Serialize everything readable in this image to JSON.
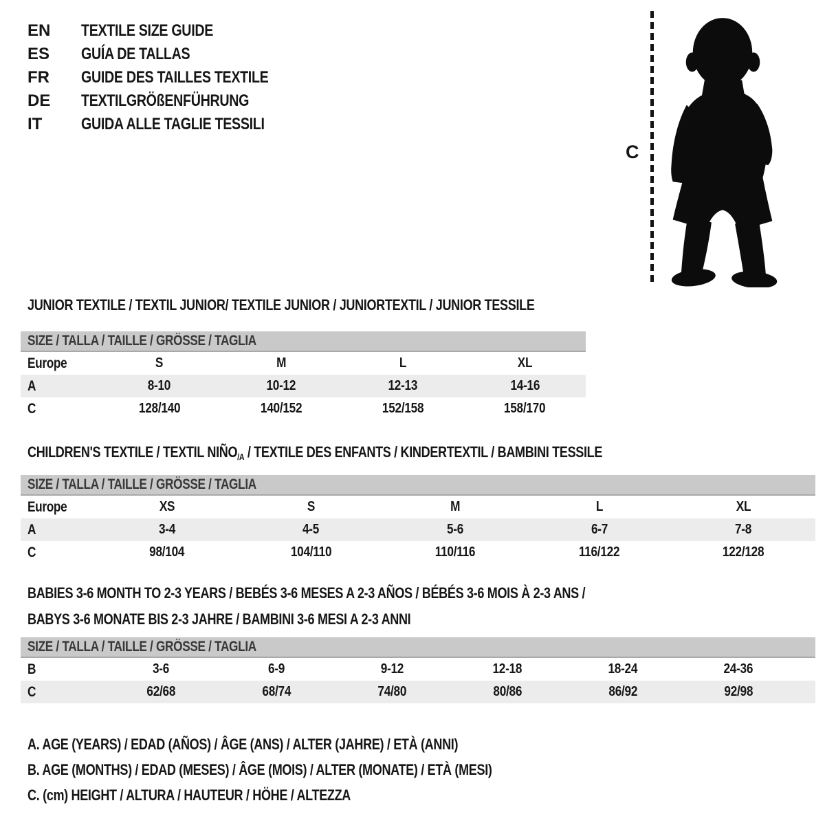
{
  "languages": [
    {
      "code": "EN",
      "title": "TEXTILE SIZE GUIDE"
    },
    {
      "code": "ES",
      "title": "GUÍA DE TALLAS"
    },
    {
      "code": "FR",
      "title": "GUIDE DES TAILLES TEXTILE"
    },
    {
      "code": "DE",
      "title": "TEXTILGRÖßENFÜHRUNG"
    },
    {
      "code": "IT",
      "title": "GUIDA ALLE TAGLIE TESSILI"
    }
  ],
  "figure": {
    "measure_label": "C",
    "silhouette": "toddler-silhouette"
  },
  "sections": [
    {
      "heading": "JUNIOR TEXTILE / TEXTIL JUNIOR/ TEXTILE JUNIOR / JUNIORTEXTIL / JUNIOR TESSILE",
      "size_header": "SIZE / TALLA / TAILLE / GRÖSSE / TAGLIA",
      "rows": [
        {
          "label": "Europe",
          "shaded": false,
          "values": [
            "S",
            "M",
            "L",
            "XL"
          ]
        },
        {
          "label": "A",
          "shaded": true,
          "values": [
            "8-10",
            "10-12",
            "12-13",
            "14-16"
          ]
        },
        {
          "label": "C",
          "shaded": false,
          "values": [
            "128/140",
            "140/152",
            "152/158",
            "158/170"
          ]
        }
      ]
    },
    {
      "heading_pre": "CHILDREN'S TEXTILE / TEXTIL NIÑO",
      "heading_sub": "/A",
      "heading_post": " / TEXTILE DES ENFANTS / KINDERTEXTIL / BAMBINI TESSILE",
      "size_header": "SIZE / TALLA / TAILLE / GRÖSSE / TAGLIA",
      "rows": [
        {
          "label": "Europe",
          "shaded": false,
          "values": [
            "XS",
            "S",
            "M",
            "L",
            "XL"
          ]
        },
        {
          "label": "A",
          "shaded": true,
          "values": [
            "3-4",
            "4-5",
            "5-6",
            "6-7",
            "7-8"
          ]
        },
        {
          "label": "C",
          "shaded": false,
          "values": [
            "98/104",
            "104/110",
            "110/116",
            "116/122",
            "122/128"
          ]
        }
      ]
    },
    {
      "heading_line1": "BABIES 3-6 MONTH TO 2-3 YEARS / BEBÉS 3-6 MESES A 2-3 AÑOS / BÉBÉS 3-6 MOIS À 2-3 ANS /",
      "heading_line2": "BABYS 3-6 MONATE BIS 2-3 JAHRE / BAMBINI 3-6 MESI A 2-3 ANNI",
      "size_header": "SIZE / TALLA / TAILLE / GRÖSSE / TAGLIA",
      "rows": [
        {
          "label": "B",
          "shaded": false,
          "values": [
            "3-6",
            "6-9",
            "9-12",
            "12-18",
            "18-24",
            "24-36"
          ]
        },
        {
          "label": "C",
          "shaded": true,
          "values": [
            "62/68",
            "68/74",
            "74/80",
            "80/86",
            "86/92",
            "92/98"
          ]
        }
      ]
    }
  ],
  "legend": [
    "A. AGE (YEARS) / EDAD (AÑOS) / ÂGE (ANS) / ALTER (JAHRE) / ETÀ (ANNI)",
    "B. AGE (MONTHS) / EDAD (MESES) / ÂGE (MOIS) / ALTER (MONATE) / ETÀ (MESI)",
    "C. (cm) HEIGHT / ALTURA / HAUTEUR / HÖHE / ALTEZZA"
  ],
  "colors": {
    "band": "#c9c9c9",
    "shaded_row": "#ececec",
    "text": "#161616"
  }
}
